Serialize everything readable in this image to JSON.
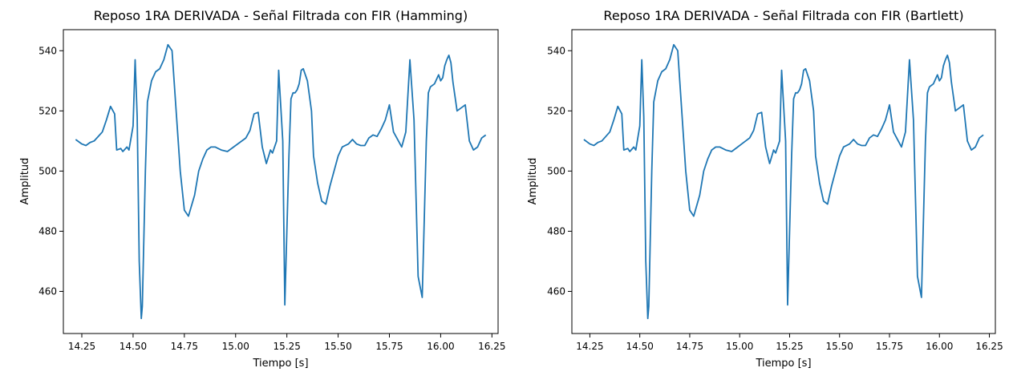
{
  "figure": {
    "background": "#ffffff"
  },
  "chart_data": [
    {
      "type": "line",
      "title": "Reposo 1RA DERIVADA - Señal Filtrada con FIR (Hamming)",
      "xlabel": "Tiempo [s]",
      "ylabel": "Amplitud",
      "xlim": [
        14.16,
        16.28
      ],
      "ylim": [
        446,
        547
      ],
      "xticks": [
        14.25,
        14.5,
        14.75,
        15.0,
        15.25,
        15.5,
        15.75,
        16.0,
        16.25
      ],
      "xtick_labels": [
        "14.25",
        "14.50",
        "14.75",
        "15.00",
        "15.25",
        "15.50",
        "15.75",
        "16.00",
        "16.25"
      ],
      "yticks": [
        460,
        480,
        500,
        520,
        540
      ],
      "ytick_labels": [
        "460",
        "480",
        "500",
        "520",
        "540"
      ],
      "grid": false,
      "series": [
        {
          "color": "#1f77b4",
          "x": [
            14.22,
            14.25,
            14.27,
            14.29,
            14.31,
            14.33,
            14.35,
            14.37,
            14.39,
            14.41,
            14.42,
            14.44,
            14.45,
            14.47,
            14.48,
            14.5,
            14.51,
            14.52,
            14.53,
            14.54,
            14.545,
            14.56,
            14.57,
            14.59,
            14.61,
            14.63,
            14.65,
            14.67,
            14.69,
            14.7,
            14.71,
            14.73,
            14.75,
            14.77,
            14.8,
            14.82,
            14.84,
            14.86,
            14.88,
            14.9,
            14.93,
            14.96,
            14.99,
            15.01,
            15.03,
            15.05,
            15.07,
            15.09,
            15.11,
            15.13,
            15.15,
            15.17,
            15.18,
            15.2,
            15.21,
            15.23,
            15.24,
            15.26,
            15.27,
            15.28,
            15.29,
            15.3,
            15.31,
            15.32,
            15.33,
            15.35,
            15.37,
            15.38,
            15.4,
            15.42,
            15.44,
            15.46,
            15.48,
            15.5,
            15.52,
            15.55,
            15.57,
            15.59,
            15.61,
            15.63,
            15.65,
            15.67,
            15.69,
            15.71,
            15.73,
            15.75,
            15.77,
            15.79,
            15.81,
            15.83,
            15.85,
            15.87,
            15.89,
            15.91,
            15.93,
            15.94,
            15.95,
            15.97,
            15.99,
            16.0,
            16.01,
            16.02,
            16.03,
            16.04,
            16.05,
            16.06,
            16.08,
            16.1,
            16.12,
            16.14,
            16.16,
            16.18,
            16.2,
            16.22
          ],
          "y": [
            510.5,
            509,
            508.5,
            509.5,
            510,
            511.5,
            513,
            517,
            521.5,
            519,
            507,
            507.5,
            506.5,
            508,
            507,
            515,
            537,
            518,
            470,
            451,
            455,
            500,
            523,
            530,
            533,
            534,
            537,
            542,
            540,
            530,
            520,
            500,
            487,
            485,
            492,
            500,
            504,
            507,
            508,
            508,
            507,
            506.5,
            508,
            509,
            510,
            511,
            513.5,
            519,
            519.5,
            508,
            502.5,
            507,
            506,
            510,
            533.5,
            510,
            455.5,
            505,
            524,
            526,
            526,
            527,
            529,
            533.5,
            534,
            530,
            520,
            505,
            496,
            490,
            489,
            495,
            500,
            505,
            508,
            509,
            510.5,
            509,
            508.5,
            508.5,
            511,
            512,
            511.5,
            514,
            517,
            522,
            513,
            510.5,
            508,
            513,
            537,
            517,
            465,
            458,
            510,
            526,
            528,
            529,
            532,
            530,
            531,
            535,
            537,
            538.5,
            536,
            529.5,
            520,
            521,
            522,
            510,
            507,
            508,
            511,
            512
          ],
          "x_order": "shared_with_y"
        }
      ]
    },
    {
      "type": "line",
      "title": "Reposo 1RA DERIVADA - Señal Filtrada con FIR (Bartlett)",
      "xlabel": "Tiempo [s]",
      "ylabel": "Amplitud",
      "xlim": [
        14.16,
        16.28
      ],
      "ylim": [
        446,
        547
      ],
      "xticks": [
        14.25,
        14.5,
        14.75,
        15.0,
        15.25,
        15.5,
        15.75,
        16.0,
        16.25
      ],
      "xtick_labels": [
        "14.25",
        "14.50",
        "14.75",
        "15.00",
        "15.25",
        "15.50",
        "15.75",
        "16.00",
        "16.25"
      ],
      "yticks": [
        460,
        480,
        500,
        520,
        540
      ],
      "ytick_labels": [
        "460",
        "480",
        "500",
        "520",
        "540"
      ],
      "grid": false,
      "series": [
        {
          "color": "#1f77b4",
          "x": [
            14.22,
            14.25,
            14.27,
            14.29,
            14.31,
            14.33,
            14.35,
            14.37,
            14.39,
            14.41,
            14.42,
            14.44,
            14.45,
            14.47,
            14.48,
            14.5,
            14.51,
            14.52,
            14.53,
            14.54,
            14.545,
            14.56,
            14.57,
            14.59,
            14.61,
            14.63,
            14.65,
            14.67,
            14.69,
            14.7,
            14.71,
            14.73,
            14.75,
            14.77,
            14.8,
            14.82,
            14.84,
            14.86,
            14.88,
            14.9,
            14.93,
            14.96,
            14.99,
            15.01,
            15.03,
            15.05,
            15.07,
            15.09,
            15.11,
            15.13,
            15.15,
            15.17,
            15.18,
            15.2,
            15.21,
            15.23,
            15.24,
            15.26,
            15.27,
            15.28,
            15.29,
            15.3,
            15.31,
            15.32,
            15.33,
            15.35,
            15.37,
            15.38,
            15.4,
            15.42,
            15.44,
            15.46,
            15.48,
            15.5,
            15.52,
            15.55,
            15.57,
            15.59,
            15.61,
            15.63,
            15.65,
            15.67,
            15.69,
            15.71,
            15.73,
            15.75,
            15.77,
            15.79,
            15.81,
            15.83,
            15.85,
            15.87,
            15.89,
            15.91,
            15.93,
            15.94,
            15.95,
            15.97,
            15.99,
            16.0,
            16.01,
            16.02,
            16.03,
            16.04,
            16.05,
            16.06,
            16.08,
            16.1,
            16.12,
            16.14,
            16.16,
            16.18,
            16.2,
            16.22
          ],
          "y": [
            510.5,
            509,
            508.5,
            509.5,
            510,
            511.5,
            513,
            517,
            521.5,
            519,
            507,
            507.5,
            506.5,
            508,
            507,
            515,
            537,
            518,
            470,
            451,
            455,
            500,
            523,
            530,
            533,
            534,
            537,
            542,
            540,
            530,
            520,
            500,
            487,
            485,
            492,
            500,
            504,
            507,
            508,
            508,
            507,
            506.5,
            508,
            509,
            510,
            511,
            513.5,
            519,
            519.5,
            508,
            502.5,
            507,
            506,
            510,
            533.5,
            510,
            455.5,
            505,
            524,
            526,
            526,
            527,
            529,
            533.5,
            534,
            530,
            520,
            505,
            496,
            490,
            489,
            495,
            500,
            505,
            508,
            509,
            510.5,
            509,
            508.5,
            508.5,
            511,
            512,
            511.5,
            514,
            517,
            522,
            513,
            510.5,
            508,
            513,
            537,
            517,
            465,
            458,
            510,
            526,
            528,
            529,
            532,
            530,
            531,
            535,
            537,
            538.5,
            536,
            529.5,
            520,
            521,
            522,
            510,
            507,
            508,
            511,
            512
          ],
          "x_order": "shared_with_y"
        }
      ]
    }
  ]
}
